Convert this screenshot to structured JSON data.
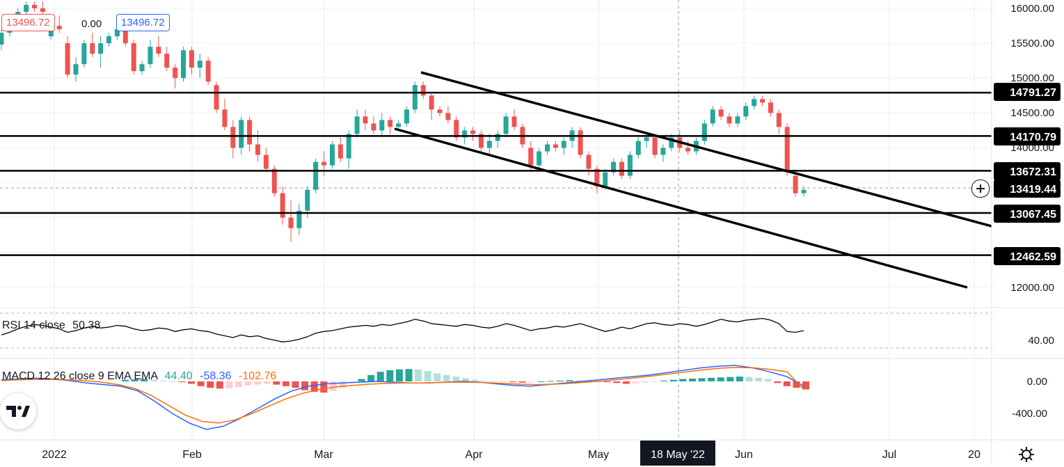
{
  "header": {
    "open_box": "13496.72",
    "change": "0.00",
    "close_box": "13496.72"
  },
  "price_axis": {
    "labels": [
      "16000.00",
      "15500.00",
      "15000.00",
      "14500.00",
      "14000.00",
      "12000.00"
    ],
    "levels": [
      "14791.27",
      "14170.79",
      "13672.31",
      "13419.44",
      "13067.45",
      "12462.59"
    ]
  },
  "time_axis": {
    "labels": [
      "2022",
      "Feb",
      "Mar",
      "Apr",
      "May",
      "Jun",
      "Jul",
      "20"
    ],
    "crosshair_label": "18 May '22"
  },
  "rsi": {
    "label": "RSI 14 close",
    "value": "50.38",
    "axis_label": "40.00"
  },
  "macd": {
    "label": "MACD 12 26 close 9 EMA EMA",
    "hist": "44.40",
    "macd": "-58.36",
    "signal": "-102.76",
    "axis_labels": [
      "0.00",
      "-400.00"
    ]
  },
  "colors": {
    "up": "#26a69a",
    "down": "#ef5350",
    "macd_line": "#2962ff",
    "signal_line": "#ff6d00",
    "level_line": "#000000"
  },
  "icons": [
    "crosshair-plus-icon",
    "settings-gear-icon",
    "tradingview-logo-icon"
  ],
  "chart_data": {
    "type": "candlestick",
    "ylim": [
      11600,
      16100
    ],
    "candles_ohlc": [
      [
        15480,
        15700,
        15400,
        15650
      ],
      [
        15650,
        15850,
        15600,
        15800
      ],
      [
        15800,
        16000,
        15750,
        15950
      ],
      [
        15950,
        16100,
        15900,
        16050
      ],
      [
        16050,
        16100,
        15950,
        16000
      ],
      [
        16000,
        16100,
        15900,
        15950
      ],
      [
        15600,
        15800,
        15550,
        15750
      ],
      [
        15750,
        15900,
        15650,
        15700
      ],
      [
        15500,
        15600,
        15000,
        15050
      ],
      [
        15050,
        15300,
        14950,
        15200
      ],
      [
        15200,
        15550,
        15150,
        15500
      ],
      [
        15500,
        15650,
        15300,
        15350
      ],
      [
        15350,
        15600,
        15150,
        15500
      ],
      [
        15500,
        15650,
        15450,
        15600
      ],
      [
        15600,
        15800,
        15550,
        15700
      ],
      [
        15700,
        15750,
        15450,
        15500
      ],
      [
        15500,
        15550,
        15050,
        15100
      ],
      [
        15100,
        15250,
        15050,
        15200
      ],
      [
        15200,
        15550,
        15150,
        15450
      ],
      [
        15450,
        15600,
        15300,
        15350
      ],
      [
        15350,
        15450,
        15100,
        15150
      ],
      [
        15150,
        15200,
        14850,
        15000
      ],
      [
        15000,
        15450,
        14950,
        15400
      ],
      [
        15400,
        15450,
        15050,
        15150
      ],
      [
        15150,
        15350,
        15000,
        15250
      ],
      [
        15250,
        15300,
        14900,
        14950
      ],
      [
        14900,
        14950,
        14500,
        14550
      ],
      [
        14550,
        14700,
        14250,
        14300
      ],
      [
        14300,
        14400,
        13850,
        14000
      ],
      [
        14000,
        14450,
        13900,
        14400
      ],
      [
        14400,
        14450,
        13950,
        14050
      ],
      [
        14050,
        14250,
        13800,
        13900
      ],
      [
        13900,
        14000,
        13650,
        13700
      ],
      [
        13700,
        13750,
        13300,
        13350
      ],
      [
        13350,
        13450,
        12900,
        13000
      ],
      [
        13000,
        13250,
        12650,
        12850
      ],
      [
        12850,
        13200,
        12750,
        13100
      ],
      [
        13100,
        13450,
        13000,
        13400
      ],
      [
        13400,
        13850,
        13350,
        13800
      ],
      [
        13800,
        13950,
        13600,
        13750
      ],
      [
        13750,
        14100,
        13700,
        14050
      ],
      [
        14050,
        14150,
        13800,
        13850
      ],
      [
        13850,
        14250,
        13700,
        14200
      ],
      [
        14200,
        14550,
        14150,
        14450
      ],
      [
        14450,
        14550,
        14250,
        14350
      ],
      [
        14350,
        14450,
        14200,
        14250
      ],
      [
        14250,
        14500,
        14150,
        14400
      ],
      [
        14400,
        14450,
        14200,
        14300
      ],
      [
        14300,
        14400,
        14250,
        14350
      ],
      [
        14350,
        14600,
        14300,
        14550
      ],
      [
        14550,
        14950,
        14500,
        14900
      ],
      [
        14900,
        14950,
        14700,
        14750
      ],
      [
        14750,
        14800,
        14400,
        14550
      ],
      [
        14550,
        14600,
        14450,
        14500
      ],
      [
        14500,
        14600,
        14350,
        14400
      ],
      [
        14400,
        14450,
        14100,
        14150
      ],
      [
        14150,
        14300,
        14050,
        14250
      ],
      [
        14250,
        14300,
        14100,
        14200
      ],
      [
        14200,
        14250,
        13950,
        14000
      ],
      [
        14000,
        14200,
        13900,
        14100
      ],
      [
        14100,
        14250,
        14000,
        14200
      ],
      [
        14200,
        14500,
        14150,
        14450
      ],
      [
        14450,
        14550,
        14250,
        14300
      ],
      [
        14300,
        14350,
        14000,
        14050
      ],
      [
        14000,
        14100,
        13650,
        13750
      ],
      [
        13750,
        14000,
        13700,
        13950
      ],
      [
        13950,
        14100,
        13900,
        14050
      ],
      [
        14050,
        14100,
        13950,
        14000
      ],
      [
        14000,
        14150,
        13900,
        14100
      ],
      [
        14100,
        14300,
        14000,
        14250
      ],
      [
        14250,
        14300,
        13850,
        13900
      ],
      [
        13900,
        13950,
        13600,
        13700
      ],
      [
        13700,
        13750,
        13350,
        13450
      ],
      [
        13450,
        13700,
        13400,
        13650
      ],
      [
        13650,
        13850,
        13600,
        13800
      ],
      [
        13800,
        13850,
        13550,
        13600
      ],
      [
        13600,
        13950,
        13550,
        13900
      ],
      [
        13900,
        14150,
        13850,
        14100
      ],
      [
        14100,
        14200,
        14000,
        14150
      ],
      [
        14150,
        14200,
        13850,
        13900
      ],
      [
        13900,
        14050,
        13800,
        14000
      ],
      [
        14000,
        14200,
        13950,
        14150
      ],
      [
        14150,
        14250,
        13950,
        14000
      ],
      [
        14000,
        14100,
        13900,
        13950
      ],
      [
        13950,
        14150,
        13900,
        14100
      ],
      [
        14100,
        14400,
        14050,
        14350
      ],
      [
        14350,
        14600,
        14300,
        14550
      ],
      [
        14550,
        14600,
        14400,
        14450
      ],
      [
        14450,
        14500,
        14300,
        14350
      ],
      [
        14350,
        14500,
        14300,
        14450
      ],
      [
        14450,
        14650,
        14400,
        14600
      ],
      [
        14600,
        14750,
        14550,
        14700
      ],
      [
        14700,
        14750,
        14600,
        14650
      ],
      [
        14650,
        14700,
        14450,
        14500
      ],
      [
        14500,
        14550,
        14200,
        14300
      ],
      [
        14300,
        14350,
        13600,
        13650
      ],
      [
        13600,
        13650,
        13300,
        13350
      ],
      [
        13350,
        13450,
        13300,
        13400
      ]
    ],
    "trend_upper": [
      [
        15000,
        1
      ],
      [
        13000,
        1
      ]
    ],
    "horizontal_levels": [
      14791.27,
      14170.79,
      13672.31,
      13067.45,
      12462.59
    ],
    "rsi_values": [
      45,
      48,
      52,
      55,
      57,
      56,
      54,
      52,
      48,
      50,
      53,
      55,
      53,
      54,
      56,
      55,
      52,
      50,
      51,
      53,
      52,
      49,
      51,
      52,
      50,
      49,
      46,
      44,
      42,
      45,
      43,
      44,
      41,
      39,
      37,
      38,
      40,
      43,
      47,
      49,
      50,
      52,
      54,
      55,
      56,
      55,
      57,
      56,
      58,
      60,
      63,
      61,
      58,
      57,
      56,
      55,
      57,
      56,
      54,
      53,
      55,
      58,
      56,
      53,
      50,
      52,
      53,
      55,
      54,
      56,
      58,
      55,
      52,
      49,
      51,
      54,
      52,
      55,
      58,
      59,
      57,
      56,
      58,
      57,
      55,
      57,
      60,
      63,
      61,
      60,
      62,
      63,
      64,
      62,
      58,
      49,
      48,
      50
    ],
    "macd_hist": [
      20,
      25,
      30,
      20,
      10,
      0,
      -10,
      -30,
      -60,
      -80,
      -90,
      -85,
      -70,
      -50,
      -40,
      -30,
      -40,
      -60,
      -80,
      -110,
      -130,
      -140,
      -120,
      -80,
      -20,
      30,
      80,
      120,
      140,
      150,
      155,
      150,
      130,
      100,
      80,
      60,
      40,
      20,
      10,
      5,
      0,
      -10,
      -15,
      -10,
      0,
      5,
      10,
      15,
      10,
      5,
      0,
      -10,
      -20,
      -30,
      -25,
      -15,
      -5,
      10,
      20,
      30,
      35,
      40,
      45,
      50,
      55,
      60,
      55,
      45,
      30,
      -20,
      -60,
      -80,
      -100
    ],
    "macd_values": [
      20,
      30,
      40,
      30,
      10,
      -20,
      -40,
      -60,
      -120,
      -250,
      -400,
      -520,
      -600,
      -560,
      -460,
      -340,
      -220,
      -120,
      -60,
      -30,
      -20,
      -10,
      0,
      -10,
      -20,
      -20,
      -10,
      0,
      -10,
      -30,
      -50,
      -60,
      -40,
      -20,
      0,
      20,
      40,
      60,
      80,
      110,
      140,
      170,
      190,
      200,
      170,
      120,
      60,
      -58
    ],
    "signal_values": [
      10,
      20,
      25,
      25,
      20,
      10,
      -10,
      -40,
      -90,
      -180,
      -300,
      -420,
      -500,
      -520,
      -480,
      -400,
      -310,
      -220,
      -150,
      -100,
      -70,
      -50,
      -35,
      -25,
      -20,
      -20,
      -15,
      -10,
      -10,
      -15,
      -25,
      -35,
      -40,
      -35,
      -25,
      -10,
      5,
      25,
      45,
      70,
      95,
      120,
      145,
      165,
      175,
      170,
      150,
      120,
      -102
    ]
  }
}
